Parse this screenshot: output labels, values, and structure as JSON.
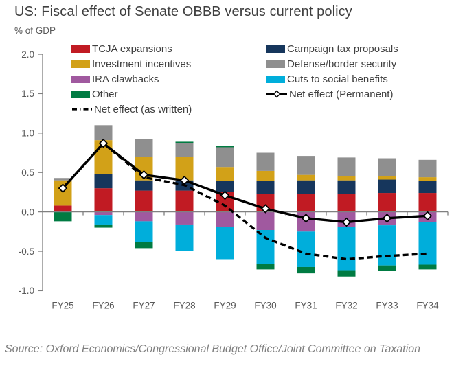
{
  "header": {
    "title": "US: Fiscal effect of Senate OBBB versus current policy",
    "subtitle": "% of GDP"
  },
  "footer": {
    "source": "Source: Oxford Economics/Congressional Budget Office/Joint Committee on Taxation"
  },
  "colors": {
    "title_text": "#3f3f3f",
    "axis_text": "#595959",
    "axis_line": "#808080",
    "legend_text": "#404040",
    "net_line": "#000000",
    "source_text": "#7f7f7f"
  },
  "chart_data": {
    "type": "bar",
    "stacked": true,
    "title": "US: Fiscal effect of Senate OBBB versus current policy",
    "ylabel": "% of GDP",
    "xlabel": "",
    "ylim": [
      -1.0,
      2.0
    ],
    "y_ticks": [
      "2.0",
      "1.5",
      "1.0",
      "0.5",
      "0.0",
      "-0.5",
      "-1.0"
    ],
    "grid": false,
    "legend_position": "top",
    "categories": [
      "FY25",
      "FY26",
      "FY27",
      "FY28",
      "FY29",
      "FY30",
      "FY31",
      "FY32",
      "FY33",
      "FY34"
    ],
    "series": [
      {
        "name": "TCJA expansions",
        "color": "#c11b23",
        "values": [
          0.08,
          0.3,
          0.27,
          0.27,
          0.25,
          0.23,
          0.23,
          0.23,
          0.24,
          0.24
        ]
      },
      {
        "name": "Campaign tax proposals",
        "color": "#16365c",
        "values": [
          0.0,
          0.18,
          0.13,
          0.13,
          0.14,
          0.16,
          0.17,
          0.17,
          0.17,
          0.15
        ]
      },
      {
        "name": "Investment incentives",
        "color": "#d2a118",
        "values": [
          0.32,
          0.43,
          0.3,
          0.3,
          0.18,
          0.13,
          0.07,
          0.05,
          0.04,
          0.05
        ]
      },
      {
        "name": "Defense/border security",
        "color": "#8f8f8f",
        "values": [
          0.03,
          0.19,
          0.22,
          0.17,
          0.25,
          0.23,
          0.24,
          0.24,
          0.23,
          0.22
        ]
      },
      {
        "name": "IRA clawbacks",
        "color": "#a0599f",
        "values": [
          0.0,
          -0.04,
          -0.12,
          -0.16,
          -0.19,
          -0.23,
          -0.25,
          -0.19,
          -0.17,
          -0.13
        ]
      },
      {
        "name": "Cuts to social benefits",
        "color": "#00aedb",
        "values": [
          0.0,
          -0.12,
          -0.26,
          -0.34,
          -0.41,
          -0.43,
          -0.45,
          -0.55,
          -0.51,
          -0.54
        ]
      },
      {
        "name": "Other",
        "color": "#007b42",
        "values": [
          -0.12,
          -0.04,
          -0.08,
          0.02,
          0.02,
          -0.07,
          -0.08,
          -0.08,
          -0.07,
          -0.06
        ]
      }
    ],
    "lines": [
      {
        "name": "Net effect (as written)",
        "style": "dashed",
        "color": "#000000",
        "values": [
          0.3,
          0.87,
          0.44,
          0.34,
          0.08,
          -0.33,
          -0.53,
          -0.6,
          -0.56,
          -0.53
        ]
      },
      {
        "name": "Net effect (Permanent)",
        "style": "solid-diamond",
        "color": "#000000",
        "values": [
          0.3,
          0.87,
          0.47,
          0.4,
          0.21,
          0.04,
          -0.08,
          -0.13,
          -0.08,
          -0.05
        ]
      }
    ]
  }
}
